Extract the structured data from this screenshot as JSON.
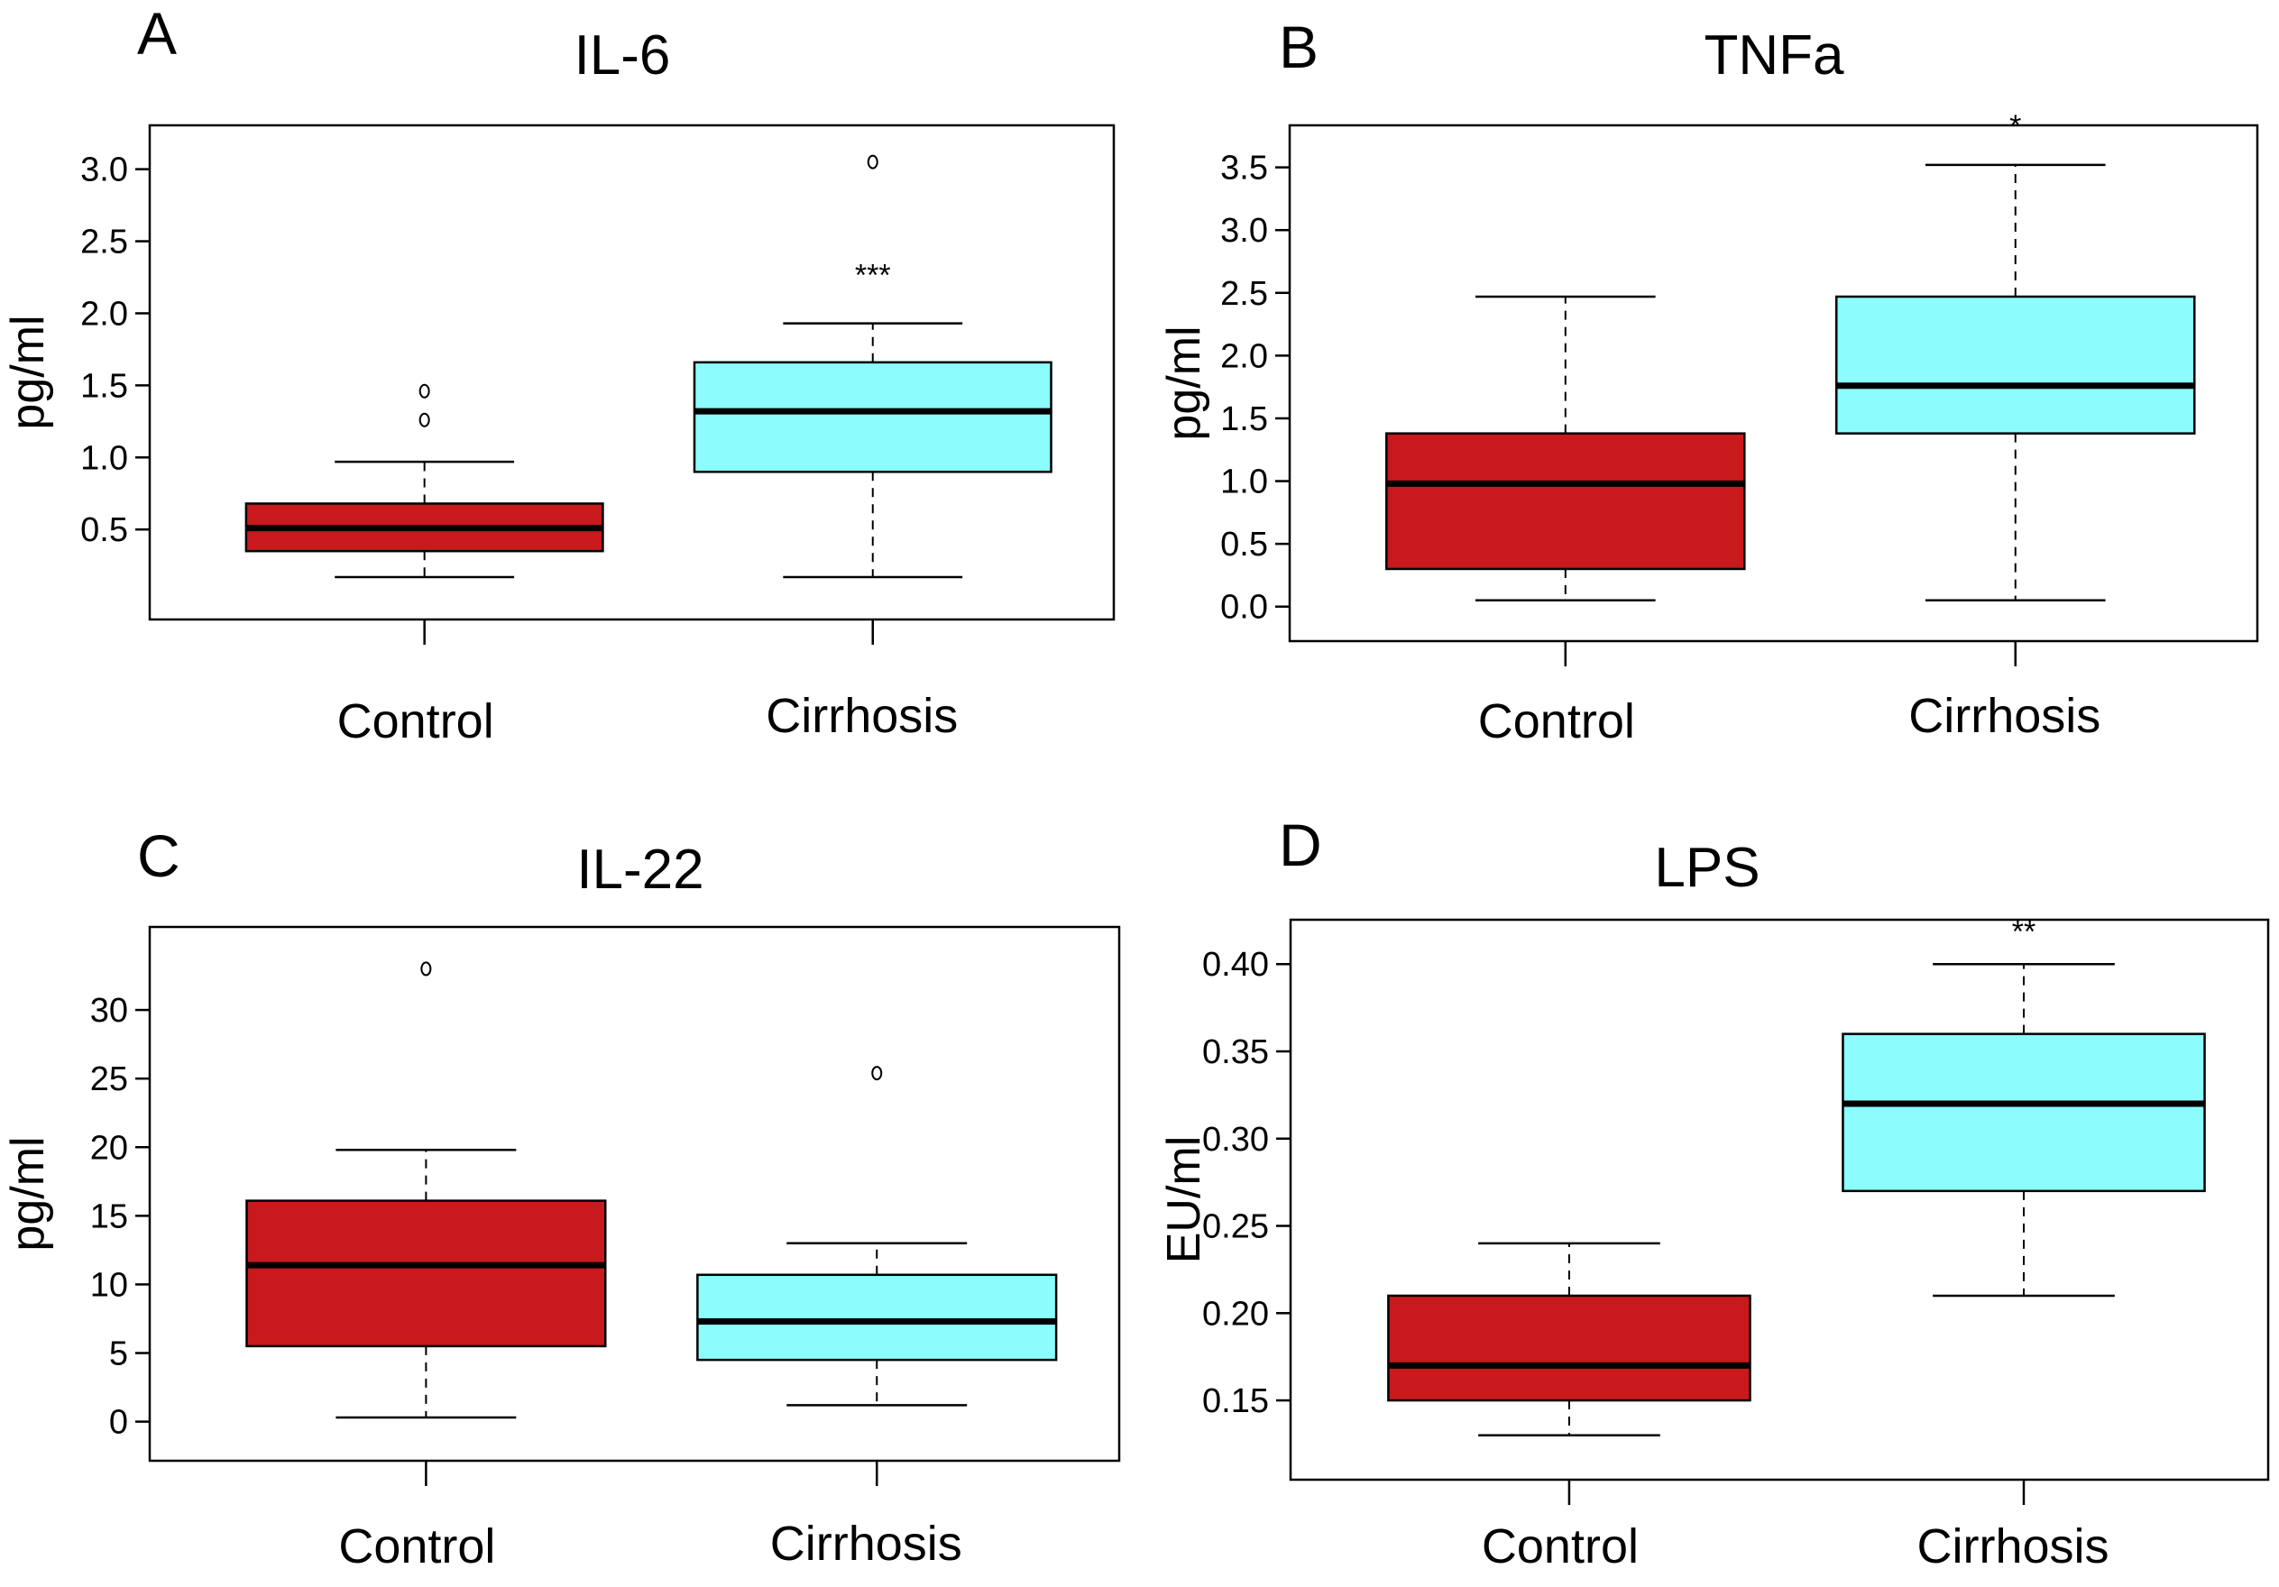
{
  "colors": {
    "control": "#c8191c",
    "cirrhosis": "#8cfcfc"
  },
  "chart_data": [
    {
      "type": "boxplot",
      "panel": "A",
      "title": "IL-6",
      "ylabel": "pg/ml",
      "xlabel": "",
      "categories": [
        "Control",
        "Cirrhosis"
      ],
      "yticks": [
        "0.5",
        "1.0",
        "1.5",
        "2.0",
        "2.5",
        "3.0"
      ],
      "ytick_values": [
        0.5,
        1.0,
        1.5,
        2.0,
        2.5,
        3.0
      ],
      "ylim": [
        0.03,
        3.15
      ],
      "series": [
        {
          "name": "Control",
          "min": 0.17,
          "q1": 0.35,
          "median": 0.51,
          "q3": 0.68,
          "max": 0.97,
          "outliers": [
            1.26,
            1.46
          ]
        },
        {
          "name": "Cirrhosis",
          "min": 0.17,
          "q1": 0.9,
          "median": 1.32,
          "q3": 1.66,
          "max": 1.93,
          "outliers": [
            3.05
          ]
        }
      ],
      "annotations": [
        {
          "category": "Cirrhosis",
          "text": "***",
          "y": 2.28
        }
      ]
    },
    {
      "type": "boxplot",
      "panel": "B",
      "title": "TNFa",
      "ylabel": "pg/ml",
      "xlabel": "",
      "categories": [
        "Control",
        "Cirrhosis"
      ],
      "yticks": [
        "0.0",
        "0.5",
        "1.0",
        "1.5",
        "2.0",
        "2.5",
        "3.0",
        "3.5"
      ],
      "ytick_values": [
        0.0,
        0.5,
        1.0,
        1.5,
        2.0,
        2.5,
        3.0,
        3.5
      ],
      "ylim": [
        -0.09,
        3.65
      ],
      "series": [
        {
          "name": "Control",
          "min": 0.05,
          "q1": 0.3,
          "median": 0.98,
          "q3": 1.38,
          "max": 2.47,
          "outliers": []
        },
        {
          "name": "Cirrhosis",
          "min": 0.05,
          "q1": 1.38,
          "median": 1.76,
          "q3": 2.47,
          "max": 3.52,
          "outliers": []
        }
      ],
      "annotations": [
        {
          "category": "Cirrhosis",
          "text": "*",
          "y": 3.85
        }
      ]
    },
    {
      "type": "boxplot",
      "panel": "C",
      "title": "IL-22",
      "ylabel": "pg/ml",
      "xlabel": "",
      "categories": [
        "Control",
        "Cirrhosis"
      ],
      "yticks": [
        "0",
        "5",
        "10",
        "15",
        "20",
        "25",
        "30"
      ],
      "ytick_values": [
        0,
        5,
        10,
        15,
        20,
        25,
        30
      ],
      "ylim": [
        -1.1,
        34.3
      ],
      "series": [
        {
          "name": "Control",
          "min": 0.3,
          "q1": 5.5,
          "median": 11.4,
          "q3": 16.1,
          "max": 19.8,
          "outliers": [
            33.0
          ]
        },
        {
          "name": "Cirrhosis",
          "min": 1.2,
          "q1": 4.5,
          "median": 7.3,
          "q3": 10.7,
          "max": 13.0,
          "outliers": [
            25.4
          ]
        }
      ],
      "annotations": []
    },
    {
      "type": "boxplot",
      "panel": "D",
      "title": "LPS",
      "ylabel": "EU/ml",
      "xlabel": "",
      "categories": [
        "Control",
        "Cirrhosis"
      ],
      "yticks": [
        "0.15",
        "0.20",
        "0.25",
        "0.30",
        "0.35",
        "0.40"
      ],
      "ytick_values": [
        0.15,
        0.2,
        0.25,
        0.3,
        0.35,
        0.4
      ],
      "ylim": [
        0.119,
        0.411
      ],
      "series": [
        {
          "name": "Control",
          "min": 0.13,
          "q1": 0.15,
          "median": 0.17,
          "q3": 0.21,
          "max": 0.24,
          "outliers": []
        },
        {
          "name": "Cirrhosis",
          "min": 0.21,
          "q1": 0.27,
          "median": 0.32,
          "q3": 0.36,
          "max": 0.4,
          "outliers": []
        }
      ],
      "annotations": [
        {
          "category": "Cirrhosis",
          "text": "**",
          "y": 0.42
        }
      ]
    }
  ]
}
